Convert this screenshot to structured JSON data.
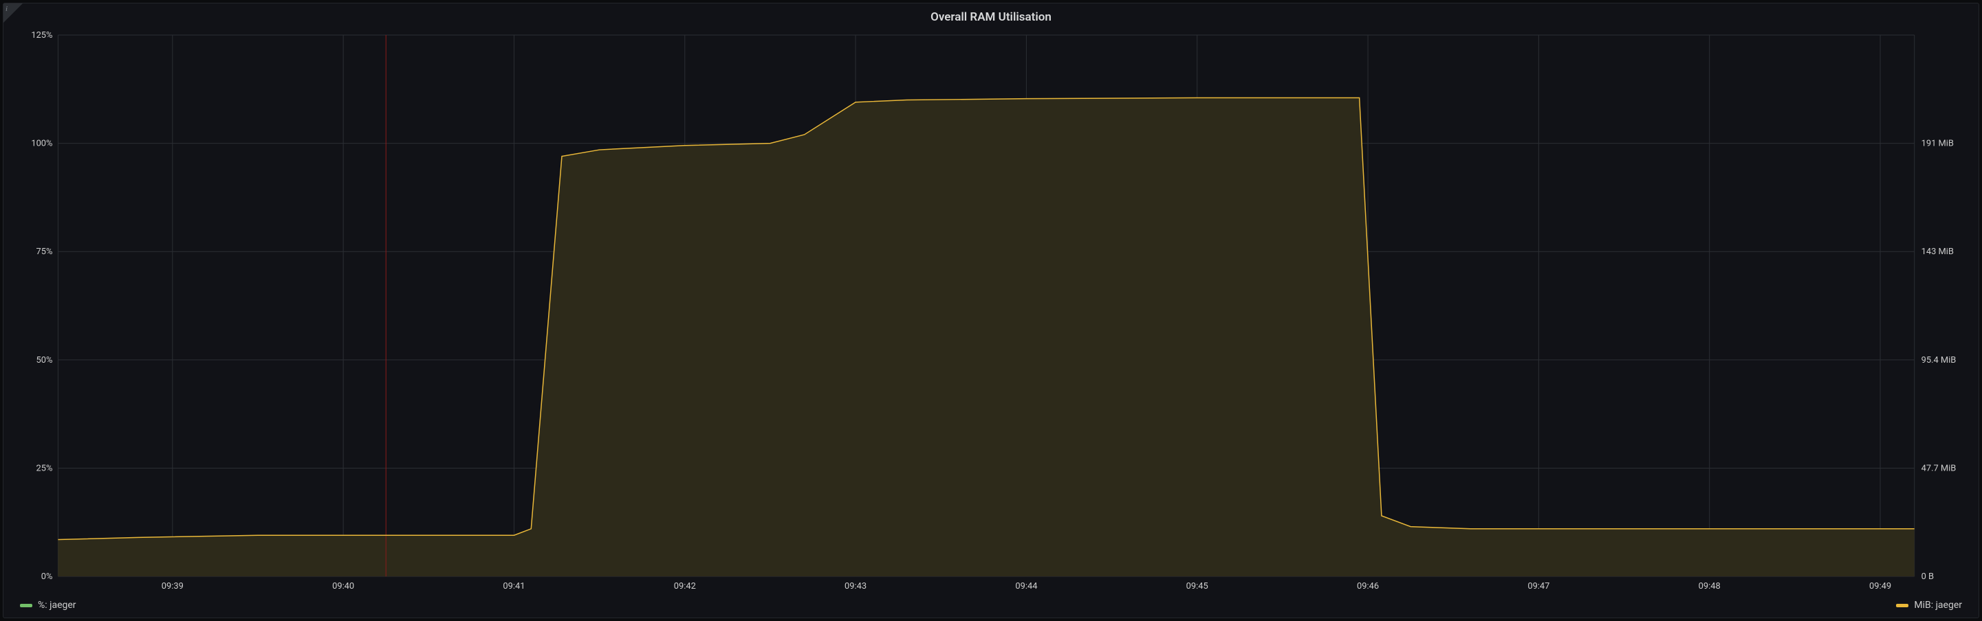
{
  "panel": {
    "title": "Overall RAM Utilisation",
    "info_icon_label": "i",
    "background_color": "#111217",
    "border_color": "#24262b"
  },
  "chart": {
    "type": "line-area",
    "grid_color": "#2c2f34",
    "tick_font_size": 13,
    "tick_color": "#cccccc",
    "x": {
      "domain_min": 38.33,
      "domain_max": 49.2,
      "ticks": [
        {
          "v": 39,
          "label": "09:39"
        },
        {
          "v": 40,
          "label": "09:40"
        },
        {
          "v": 41,
          "label": "09:41"
        },
        {
          "v": 42,
          "label": "09:42"
        },
        {
          "v": 43,
          "label": "09:43"
        },
        {
          "v": 44,
          "label": "09:44"
        },
        {
          "v": 45,
          "label": "09:45"
        },
        {
          "v": 46,
          "label": "09:46"
        },
        {
          "v": 47,
          "label": "09:47"
        },
        {
          "v": 48,
          "label": "09:48"
        },
        {
          "v": 49,
          "label": "09:49"
        }
      ]
    },
    "y_left": {
      "min": 0,
      "max": 125,
      "ticks": [
        {
          "v": 0,
          "label": "0%"
        },
        {
          "v": 25,
          "label": "25%"
        },
        {
          "v": 50,
          "label": "50%"
        },
        {
          "v": 75,
          "label": "75%"
        },
        {
          "v": 100,
          "label": "100%"
        },
        {
          "v": 125,
          "label": "125%"
        }
      ]
    },
    "y_right": {
      "ticks": [
        {
          "v": 0,
          "label": "0 B"
        },
        {
          "v": 25,
          "label": "47.7 MiB"
        },
        {
          "v": 50,
          "label": "95.4 MiB"
        },
        {
          "v": 75,
          "label": "143 MiB"
        },
        {
          "v": 100,
          "label": "191 MiB"
        }
      ]
    },
    "annotation": {
      "x": 40.25,
      "color": "#8b1a1a"
    },
    "series": [
      {
        "id": "mib_jaeger",
        "legend_label": "MiB: jaeger",
        "line_color": "#eab839",
        "fill_color": "#2d2a1a",
        "fill_opacity": 1.0,
        "line_width": 1.5,
        "points": [
          {
            "x": 38.33,
            "y": 8.5
          },
          {
            "x": 38.8,
            "y": 9.0
          },
          {
            "x": 39.5,
            "y": 9.5
          },
          {
            "x": 40.5,
            "y": 9.5
          },
          {
            "x": 41.0,
            "y": 9.5
          },
          {
            "x": 41.1,
            "y": 11.0
          },
          {
            "x": 41.28,
            "y": 97.0
          },
          {
            "x": 41.5,
            "y": 98.5
          },
          {
            "x": 42.0,
            "y": 99.5
          },
          {
            "x": 42.5,
            "y": 100.0
          },
          {
            "x": 42.7,
            "y": 102.0
          },
          {
            "x": 43.0,
            "y": 109.5
          },
          {
            "x": 43.3,
            "y": 110.0
          },
          {
            "x": 44.0,
            "y": 110.3
          },
          {
            "x": 45.0,
            "y": 110.5
          },
          {
            "x": 45.95,
            "y": 110.5
          },
          {
            "x": 46.08,
            "y": 14.0
          },
          {
            "x": 46.25,
            "y": 11.5
          },
          {
            "x": 46.6,
            "y": 11.0
          },
          {
            "x": 47.5,
            "y": 11.0
          },
          {
            "x": 48.5,
            "y": 11.0
          },
          {
            "x": 49.2,
            "y": 11.0
          }
        ]
      },
      {
        "id": "pct_jaeger",
        "legend_label": "%: jaeger",
        "line_color": "#73bf69",
        "fill_color": "none",
        "fill_opacity": 0,
        "line_width": 1.5,
        "points": []
      }
    ]
  },
  "legend": {
    "left": {
      "swatch_color": "#73bf69",
      "label_key": "chart.series.1.legend_label"
    },
    "right": {
      "swatch_color": "#eab839",
      "label_key": "chart.series.0.legend_label"
    }
  }
}
